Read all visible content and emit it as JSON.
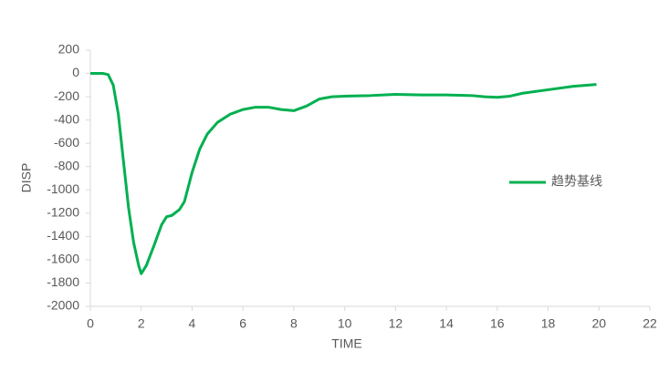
{
  "chart_data": {
    "type": "line",
    "x_label": "TIME",
    "y_label": "DISP",
    "x": [
      0,
      0.5,
      0.7,
      0.9,
      1.1,
      1.3,
      1.5,
      1.7,
      1.9,
      2.0,
      2.2,
      2.5,
      2.8,
      3.0,
      3.2,
      3.5,
      3.7,
      4.0,
      4.3,
      4.6,
      5.0,
      5.5,
      6.0,
      6.5,
      7.0,
      7.5,
      8.0,
      8.5,
      9.0,
      9.5,
      10,
      11,
      12,
      13,
      14,
      15,
      15.5,
      16,
      16.5,
      17,
      18,
      19,
      19.9
    ],
    "series": [
      {
        "name": "趋势基线",
        "color": "#00b050",
        "values": [
          0,
          0,
          -10,
          -100,
          -350,
          -750,
          -1150,
          -1450,
          -1650,
          -1720,
          -1650,
          -1480,
          -1300,
          -1230,
          -1220,
          -1170,
          -1100,
          -850,
          -650,
          -520,
          -420,
          -350,
          -310,
          -290,
          -290,
          -310,
          -320,
          -280,
          -220,
          -200,
          -195,
          -190,
          -180,
          -185,
          -185,
          -190,
          -200,
          -205,
          -195,
          -170,
          -140,
          -110,
          -95
        ]
      }
    ],
    "xlim": [
      0,
      22
    ],
    "xticks": [
      0,
      2,
      4,
      6,
      8,
      10,
      12,
      14,
      16,
      18,
      20,
      22
    ],
    "ylim": [
      -2000,
      200
    ],
    "yticks": [
      -2000,
      -1800,
      -1600,
      -1400,
      -1200,
      -1000,
      -800,
      -600,
      -400,
      -200,
      0,
      200
    ],
    "grid": false,
    "legend": "right"
  }
}
